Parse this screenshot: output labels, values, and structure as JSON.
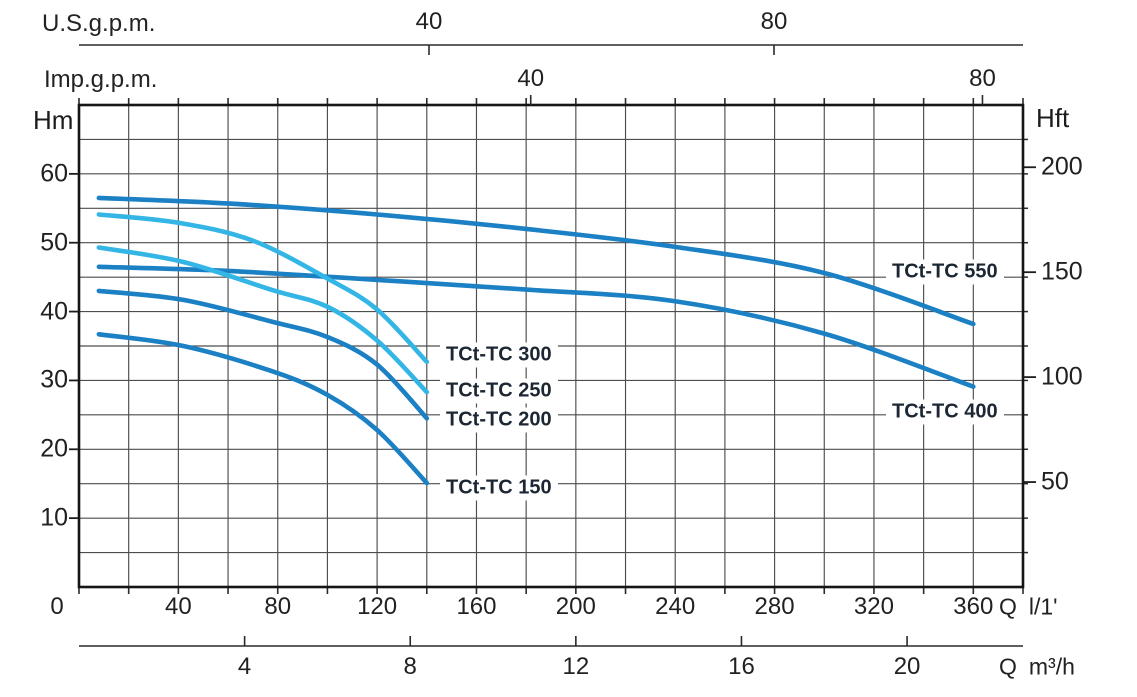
{
  "chart_data": {
    "type": "line",
    "title": "",
    "x_axis": {
      "q_symbol": "Q",
      "unit": "l/1'",
      "range": [
        0,
        380
      ],
      "gridline_step": 20,
      "tick_labels": [
        0,
        40,
        80,
        120,
        160,
        200,
        240,
        280,
        320,
        360
      ]
    },
    "x_axis_bottom_m3h": {
      "q_symbol": "Q",
      "unit": "m³/h",
      "tick_labels": [
        4,
        8,
        12,
        16,
        20
      ]
    },
    "x_axis_top_us": {
      "label": "U.S.g.p.m.",
      "tick_labels": [
        40,
        80
      ]
    },
    "x_axis_top_imp": {
      "label": "Imp.g.p.m.",
      "tick_labels": [
        40,
        80
      ]
    },
    "y_axis": {
      "label": "Hm",
      "unit": "m",
      "range": [
        0,
        70
      ],
      "gridline_step": 5,
      "tick_labels": [
        60,
        50,
        40,
        30,
        20,
        10
      ]
    },
    "y_axis_right": {
      "label": "Hft",
      "unit": "ft",
      "tick_labels": [
        200,
        150,
        100,
        50
      ]
    },
    "grid": "on",
    "colors": {
      "curve_dark_blue": "#1b80c4",
      "curve_light_blue": "#33b5e6",
      "gridline": "#4d4d4d",
      "border": "#151515",
      "text": "#212121",
      "curve_label_text": "#1d2734"
    },
    "series": [
      {
        "name": "TCt-TC 550",
        "color": "#1b80c4",
        "points": [
          [
            8,
            56.5
          ],
          [
            60,
            55.7
          ],
          [
            120,
            54.1
          ],
          [
            180,
            52.0
          ],
          [
            240,
            49.4
          ],
          [
            300,
            45.6
          ],
          [
            360,
            38.2
          ]
        ]
      },
      {
        "name": "TCt-TC 400",
        "color": "#1b80c4",
        "points": [
          [
            8,
            46.5
          ],
          [
            60,
            45.9
          ],
          [
            120,
            44.6
          ],
          [
            180,
            43.2
          ],
          [
            240,
            41.5
          ],
          [
            300,
            36.8
          ],
          [
            360,
            29.1
          ]
        ]
      },
      {
        "name": "TCt-TC 200",
        "color": "#1b80c4",
        "points": [
          [
            8,
            43.0
          ],
          [
            42,
            41.7
          ],
          [
            78,
            38.5
          ],
          [
            100,
            36.3
          ],
          [
            120,
            32.3
          ],
          [
            140,
            24.5
          ]
        ]
      },
      {
        "name": "TCt-TC 150",
        "color": "#1b80c4",
        "points": [
          [
            8,
            36.7
          ],
          [
            42,
            35.0
          ],
          [
            78,
            31.3
          ],
          [
            100,
            27.9
          ],
          [
            120,
            22.8
          ],
          [
            140,
            15.1
          ]
        ]
      },
      {
        "name": "TCt-TC 300",
        "color": "#33b5e6",
        "points": [
          [
            8,
            54.1
          ],
          [
            40,
            52.9
          ],
          [
            70,
            50.3
          ],
          [
            100,
            44.8
          ],
          [
            120,
            40.3
          ],
          [
            140,
            32.7
          ]
        ]
      },
      {
        "name": "TCt-TC 250",
        "color": "#33b5e6",
        "points": [
          [
            8,
            49.3
          ],
          [
            42,
            47.2
          ],
          [
            78,
            43.1
          ],
          [
            100,
            40.7
          ],
          [
            120,
            35.8
          ],
          [
            140,
            28.3
          ]
        ]
      }
    ]
  }
}
